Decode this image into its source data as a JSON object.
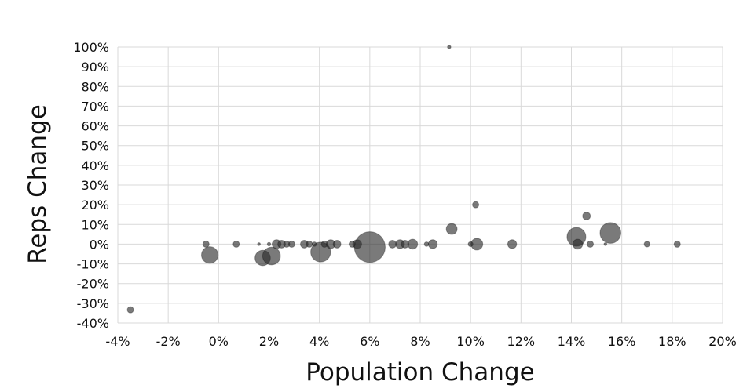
{
  "chart_data": {
    "type": "scatter",
    "bubble": true,
    "xlabel": "Population Change",
    "ylabel": "Reps Change",
    "xlim": [
      -4,
      20
    ],
    "ylim": [
      -40,
      100
    ],
    "xticks": [
      {
        "value": -4,
        "label": "-4%"
      },
      {
        "value": -2,
        "label": "-2%"
      },
      {
        "value": 0,
        "label": "0%"
      },
      {
        "value": 2,
        "label": "2%"
      },
      {
        "value": 4,
        "label": "4%"
      },
      {
        "value": 6,
        "label": "6%"
      },
      {
        "value": 8,
        "label": "8%"
      },
      {
        "value": 10,
        "label": "10%"
      },
      {
        "value": 12,
        "label": "12%"
      },
      {
        "value": 14,
        "label": "14%"
      },
      {
        "value": 16,
        "label": "16%"
      },
      {
        "value": 18,
        "label": "18%"
      },
      {
        "value": 20,
        "label": "20%"
      }
    ],
    "yticks": [
      {
        "value": 100,
        "label": "100%"
      },
      {
        "value": 90,
        "label": "90%"
      },
      {
        "value": 80,
        "label": "80%"
      },
      {
        "value": 70,
        "label": "70%"
      },
      {
        "value": 60,
        "label": "60%"
      },
      {
        "value": 50,
        "label": "50%"
      },
      {
        "value": 40,
        "label": "40%"
      },
      {
        "value": 30,
        "label": "30%"
      },
      {
        "value": 20,
        "label": "20%"
      },
      {
        "value": 10,
        "label": "10%"
      },
      {
        "value": 0,
        "label": "0%"
      },
      {
        "value": -10,
        "label": "-10%"
      },
      {
        "value": -20,
        "label": "-20%"
      },
      {
        "value": -30,
        "label": "-30%"
      },
      {
        "value": -40,
        "label": "-40%"
      }
    ],
    "grid": true,
    "color": "#333333",
    "points": [
      {
        "x": -3.5,
        "y": -33.3,
        "size": 1
      },
      {
        "x": -0.5,
        "y": 0,
        "size": 1
      },
      {
        "x": -0.35,
        "y": -5.5,
        "size": 7
      },
      {
        "x": 0.7,
        "y": 0,
        "size": 1
      },
      {
        "x": 1.6,
        "y": 0,
        "size": 0.2
      },
      {
        "x": 1.75,
        "y": -7,
        "size": 6
      },
      {
        "x": 2.0,
        "y": 0,
        "size": 0.3
      },
      {
        "x": 2.1,
        "y": -6,
        "size": 8
      },
      {
        "x": 2.3,
        "y": 0,
        "size": 2
      },
      {
        "x": 2.5,
        "y": 0,
        "size": 1.5
      },
      {
        "x": 2.7,
        "y": 0,
        "size": 1
      },
      {
        "x": 2.9,
        "y": 0,
        "size": 1
      },
      {
        "x": 3.4,
        "y": 0,
        "size": 1.5
      },
      {
        "x": 3.6,
        "y": 0,
        "size": 1
      },
      {
        "x": 3.8,
        "y": 0,
        "size": 0.5
      },
      {
        "x": 4.05,
        "y": -4,
        "size": 10
      },
      {
        "x": 4.2,
        "y": 0,
        "size": 1
      },
      {
        "x": 4.45,
        "y": 0,
        "size": 2
      },
      {
        "x": 4.7,
        "y": 0,
        "size": 1.5
      },
      {
        "x": 5.3,
        "y": 0,
        "size": 1
      },
      {
        "x": 5.5,
        "y": 0,
        "size": 2
      },
      {
        "x": 6.0,
        "y": -1.5,
        "size": 24
      },
      {
        "x": 6.9,
        "y": 0,
        "size": 1.5
      },
      {
        "x": 7.2,
        "y": 0,
        "size": 2
      },
      {
        "x": 7.4,
        "y": 0,
        "size": 1.5
      },
      {
        "x": 7.7,
        "y": 0,
        "size": 2.5
      },
      {
        "x": 8.25,
        "y": 0,
        "size": 0.5
      },
      {
        "x": 8.5,
        "y": 0,
        "size": 2
      },
      {
        "x": 9.15,
        "y": 100,
        "size": 0.3
      },
      {
        "x": 9.25,
        "y": 7.7,
        "size": 3
      },
      {
        "x": 10.0,
        "y": 0,
        "size": 0.6
      },
      {
        "x": 10.2,
        "y": 20,
        "size": 1
      },
      {
        "x": 10.25,
        "y": 0,
        "size": 3.5
      },
      {
        "x": 11.65,
        "y": 0,
        "size": 2
      },
      {
        "x": 14.2,
        "y": 3.7,
        "size": 9
      },
      {
        "x": 14.25,
        "y": 0,
        "size": 2.5
      },
      {
        "x": 14.6,
        "y": 14.3,
        "size": 1.5
      },
      {
        "x": 14.75,
        "y": 0,
        "size": 1
      },
      {
        "x": 15.35,
        "y": 0,
        "size": 0.2
      },
      {
        "x": 15.55,
        "y": 5.7,
        "size": 11
      },
      {
        "x": 17.0,
        "y": 0,
        "size": 0.8
      },
      {
        "x": 18.2,
        "y": 0,
        "size": 1
      }
    ]
  }
}
